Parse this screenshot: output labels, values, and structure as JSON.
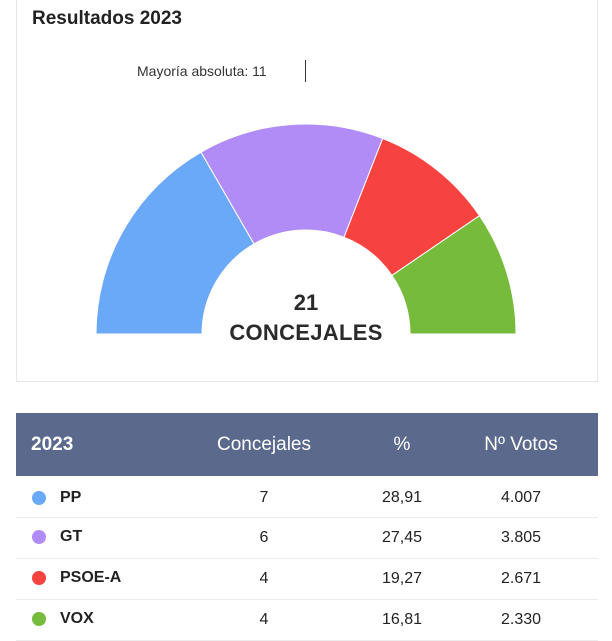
{
  "title": "Resultados 2023",
  "majority_label": "Mayoría absoluta: 11",
  "center": {
    "number": "21",
    "label": "CONCEJALES"
  },
  "table": {
    "headers": {
      "year": "2023",
      "seats": "Concejales",
      "pct": "%",
      "votes": "Nº Votos"
    },
    "rows": [
      {
        "party": "PP",
        "seats": "7",
        "pct": "28,91",
        "votes": "4.007",
        "color": "#6aa9f8"
      },
      {
        "party": "GT",
        "seats": "6",
        "pct": "27,45",
        "votes": "3.805",
        "color": "#b18cf7"
      },
      {
        "party": "PSOE-A",
        "seats": "4",
        "pct": "19,27",
        "votes": "2.671",
        "color": "#f74340"
      },
      {
        "party": "VOX",
        "seats": "4",
        "pct": "16,81",
        "votes": "2.330",
        "color": "#76bb3c"
      }
    ]
  },
  "chart_data": {
    "type": "pie",
    "subtype": "half-donut",
    "title": "Resultados 2023",
    "categories": [
      "PP",
      "GT",
      "PSOE-A",
      "VOX"
    ],
    "values": [
      7,
      6,
      4,
      4
    ],
    "total": 21,
    "majority": 11,
    "colors": [
      "#6aa9f8",
      "#b18cf7",
      "#f74340",
      "#76bb3c"
    ]
  }
}
